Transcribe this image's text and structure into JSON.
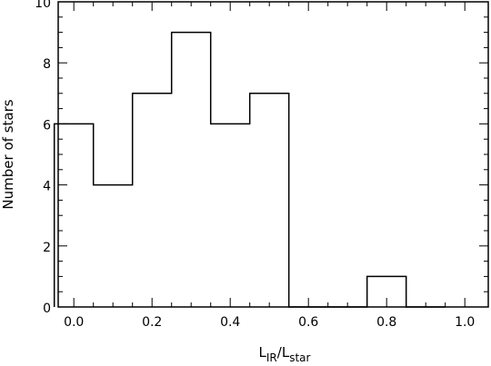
{
  "chart_data": {
    "type": "bar",
    "style": "step-histogram",
    "bins": [
      {
        "x0": -0.05,
        "x1": 0.05,
        "value": 6
      },
      {
        "x0": 0.05,
        "x1": 0.15,
        "value": 4
      },
      {
        "x0": 0.15,
        "x1": 0.25,
        "value": 7
      },
      {
        "x0": 0.25,
        "x1": 0.35,
        "value": 9
      },
      {
        "x0": 0.35,
        "x1": 0.45,
        "value": 6
      },
      {
        "x0": 0.45,
        "x1": 0.55,
        "value": 7
      },
      {
        "x0": 0.55,
        "x1": 0.65,
        "value": 0
      },
      {
        "x0": 0.65,
        "x1": 0.75,
        "value": 0
      },
      {
        "x0": 0.75,
        "x1": 0.85,
        "value": 1
      },
      {
        "x0": 0.85,
        "x1": 0.95,
        "value": 0
      }
    ],
    "xlim": [
      -0.04,
      1.06
    ],
    "ylim": [
      0,
      10
    ],
    "xticks": [
      0.0,
      0.2,
      0.4,
      0.6,
      0.8,
      1.0
    ],
    "xtick_labels": [
      "0.0",
      "0.2",
      "0.4",
      "0.6",
      "0.8",
      "1.0"
    ],
    "yticks": [
      0,
      2,
      4,
      6,
      8,
      10
    ],
    "ytick_labels": [
      "0",
      "2",
      "4",
      "6",
      "8",
      "10"
    ],
    "xlabel": {
      "base1": "L",
      "sub1": "IR",
      "sep": "/",
      "base2": "L",
      "sub2": "star"
    },
    "ylabel": "Number of stars",
    "grid": false
  }
}
